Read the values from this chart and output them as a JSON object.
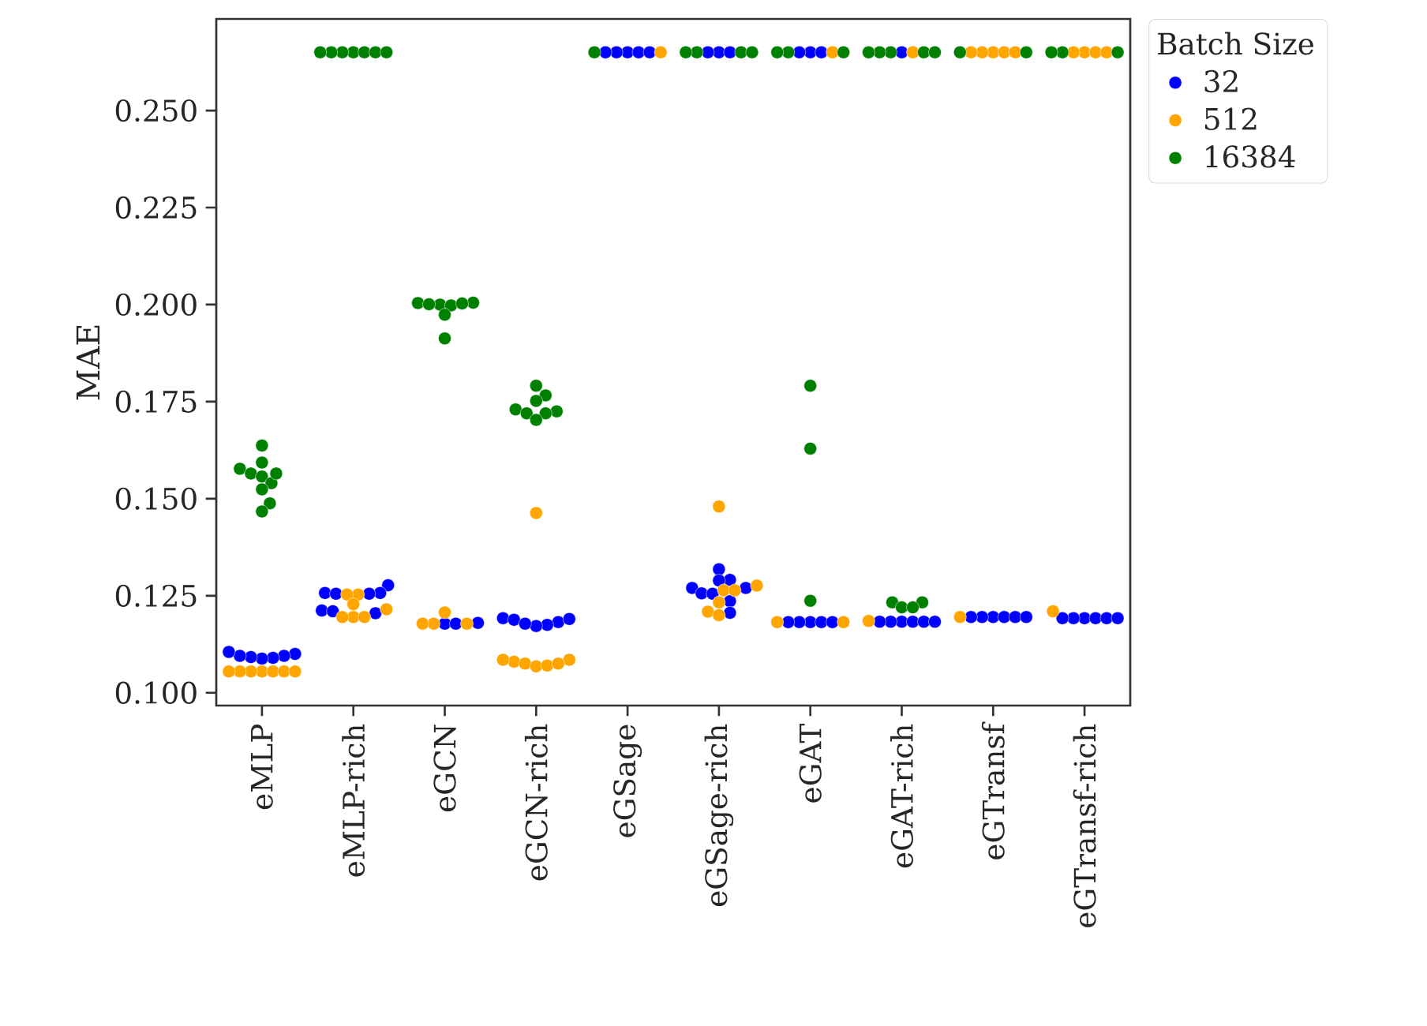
{
  "chart_data": {
    "type": "scatter",
    "ylabel": "MAE",
    "legend_title": "Batch Size",
    "legend": "right",
    "categories": [
      "eMLP",
      "eMLP-rich",
      "eGCN",
      "eGCN-rich",
      "eGSage",
      "eGSage-rich",
      "eGAT",
      "eGAT-rich",
      "eGTransf",
      "eGTransf-rich"
    ],
    "ylim": [
      0.0967,
      0.2736
    ],
    "yticks": [
      {
        "value": 0.1,
        "label": "0.100"
      },
      {
        "value": 0.125,
        "label": "0.125"
      },
      {
        "value": 0.15,
        "label": "0.150"
      },
      {
        "value": 0.175,
        "label": "0.175"
      },
      {
        "value": 0.2,
        "label": "0.200"
      },
      {
        "value": 0.225,
        "label": "0.225"
      },
      {
        "value": 0.25,
        "label": "0.250"
      }
    ],
    "series": [
      {
        "name": "32",
        "color": "#0000ff",
        "x": [
          "eMLP",
          "eMLP",
          "eMLP",
          "eMLP",
          "eMLP",
          "eMLP",
          "eMLP",
          "eMLP-rich",
          "eMLP-rich",
          "eMLP-rich",
          "eMLP-rich",
          "eMLP-rich",
          "eMLP-rich",
          "eMLP-rich",
          "eMLP-rich",
          "eGCN",
          "eGCN",
          "eGCN",
          "eGCN-rich",
          "eGCN-rich",
          "eGCN-rich",
          "eGCN-rich",
          "eGCN-rich",
          "eGCN-rich",
          "eGCN-rich",
          "eGSage",
          "eGSage",
          "eGSage",
          "eGSage",
          "eGSage",
          "eGSage-rich",
          "eGSage-rich",
          "eGSage-rich",
          "eGSage-rich",
          "eGSage-rich",
          "eGSage-rich",
          "eGSage-rich",
          "eGSage-rich",
          "eGSage-rich",
          "eGSage-rich",
          "eGSage-rich",
          "eGSage-rich",
          "eGAT",
          "eGAT",
          "eGAT",
          "eGAT",
          "eGAT",
          "eGAT",
          "eGAT",
          "eGAT",
          "eGAT-rich",
          "eGAT-rich",
          "eGAT-rich",
          "eGAT-rich",
          "eGAT-rich",
          "eGAT-rich",
          "eGAT-rich",
          "eGTransf",
          "eGTransf",
          "eGTransf",
          "eGTransf",
          "eGTransf",
          "eGTransf",
          "eGTransf-rich",
          "eGTransf-rich",
          "eGTransf-rich",
          "eGTransf-rich",
          "eGTransf-rich",
          "eGTransf-rich"
        ],
        "values": [
          0.11,
          0.1095,
          0.109,
          0.1088,
          0.1092,
          0.1095,
          0.1105,
          0.1277,
          0.1257,
          0.1257,
          0.1255,
          0.1255,
          0.1212,
          0.1205,
          0.121,
          0.118,
          0.1178,
          0.1178,
          0.1192,
          0.1188,
          0.1182,
          0.1175,
          0.1172,
          0.1178,
          0.119,
          0.265,
          0.265,
          0.265,
          0.265,
          0.265,
          0.1318,
          0.1291,
          0.1289,
          0.127,
          0.127,
          0.1256,
          0.1255,
          0.1236,
          0.1206,
          0.265,
          0.265,
          0.265,
          0.1182,
          0.1182,
          0.1182,
          0.1182,
          0.1182,
          0.265,
          0.265,
          0.265,
          0.1183,
          0.1183,
          0.1183,
          0.1183,
          0.1183,
          0.1183,
          0.265,
          0.1195,
          0.1195,
          0.1195,
          0.1195,
          0.1195,
          0.1195,
          0.1192,
          0.1192,
          0.1192,
          0.1192,
          0.1192,
          0.1192
        ]
      },
      {
        "name": "512",
        "color": "#ffa500",
        "x": [
          "eMLP",
          "eMLP",
          "eMLP",
          "eMLP",
          "eMLP",
          "eMLP",
          "eMLP",
          "eMLP-rich",
          "eMLP-rich",
          "eMLP-rich",
          "eMLP-rich",
          "eMLP-rich",
          "eMLP-rich",
          "eMLP-rich",
          "eGCN",
          "eGCN",
          "eGCN",
          "eGCN",
          "eGCN-rich",
          "eGCN-rich",
          "eGCN-rich",
          "eGCN-rich",
          "eGCN-rich",
          "eGCN-rich",
          "eGCN-rich",
          "eGCN-rich",
          "eGSage",
          "eGSage-rich",
          "eGSage-rich",
          "eGSage-rich",
          "eGSage-rich",
          "eGSage-rich",
          "eGSage-rich",
          "eGSage-rich",
          "eGAT",
          "eGAT",
          "eGAT",
          "eGAT-rich",
          "eGAT-rich",
          "eGTransf",
          "eGTransf",
          "eGTransf",
          "eGTransf",
          "eGTransf",
          "eGTransf",
          "eGTransf-rich",
          "eGTransf-rich",
          "eGTransf-rich",
          "eGTransf-rich",
          "eGTransf-rich"
        ],
        "values": [
          0.1055,
          0.1055,
          0.1055,
          0.1055,
          0.1055,
          0.1055,
          0.1055,
          0.1253,
          0.1253,
          0.1228,
          0.1195,
          0.1195,
          0.1195,
          0.1215,
          0.1207,
          0.1178,
          0.1178,
          0.1178,
          0.1463,
          0.1085,
          0.108,
          0.1075,
          0.1068,
          0.107,
          0.1075,
          0.1085,
          0.265,
          0.148,
          0.1276,
          0.1264,
          0.1264,
          0.1233,
          0.1209,
          0.12,
          0.1182,
          0.1182,
          0.265,
          0.1185,
          0.265,
          0.1195,
          0.265,
          0.265,
          0.265,
          0.265,
          0.265,
          0.121,
          0.265,
          0.265,
          0.265,
          0.265
        ]
      },
      {
        "name": "16384",
        "color": "#008000",
        "x": [
          "eMLP",
          "eMLP",
          "eMLP",
          "eMLP",
          "eMLP",
          "eMLP",
          "eMLP",
          "eMLP",
          "eMLP",
          "eMLP",
          "eMLP-rich",
          "eMLP-rich",
          "eMLP-rich",
          "eMLP-rich",
          "eMLP-rich",
          "eMLP-rich",
          "eMLP-rich",
          "eGCN",
          "eGCN",
          "eGCN",
          "eGCN",
          "eGCN",
          "eGCN",
          "eGCN",
          "eGCN",
          "eGCN-rich",
          "eGCN-rich",
          "eGCN-rich",
          "eGCN-rich",
          "eGCN-rich",
          "eGCN-rich",
          "eGCN-rich",
          "eGCN-rich",
          "eGSage",
          "eGSage-rich",
          "eGSage-rich",
          "eGSage-rich",
          "eGSage-rich",
          "eGAT",
          "eGAT",
          "eGAT",
          "eGAT",
          "eGAT",
          "eGAT",
          "eGAT-rich",
          "eGAT-rich",
          "eGAT-rich",
          "eGAT-rich",
          "eGAT-rich",
          "eGAT-rich",
          "eGAT-rich",
          "eGAT-rich",
          "eGAT-rich",
          "eGTransf",
          "eGTransf",
          "eGTransf-rich",
          "eGTransf-rich",
          "eGTransf-rich"
        ],
        "values": [
          0.1637,
          0.1593,
          0.1577,
          0.1565,
          0.1557,
          0.154,
          0.1524,
          0.1488,
          0.1467,
          0.1565,
          0.265,
          0.265,
          0.265,
          0.265,
          0.265,
          0.265,
          0.265,
          0.2005,
          0.2004,
          0.2,
          0.1998,
          0.1974,
          0.2003,
          0.2001,
          0.1913,
          0.1791,
          0.1766,
          0.1752,
          0.173,
          0.1725,
          0.172,
          0.172,
          0.1703,
          0.265,
          0.265,
          0.265,
          0.265,
          0.265,
          0.1791,
          0.1629,
          0.1237,
          0.265,
          0.265,
          0.265,
          0.1233,
          0.1233,
          0.122,
          0.122,
          0.265,
          0.265,
          0.265,
          0.265,
          0.265,
          0.265,
          0.265,
          0.265,
          0.265,
          0.265
        ]
      }
    ]
  }
}
